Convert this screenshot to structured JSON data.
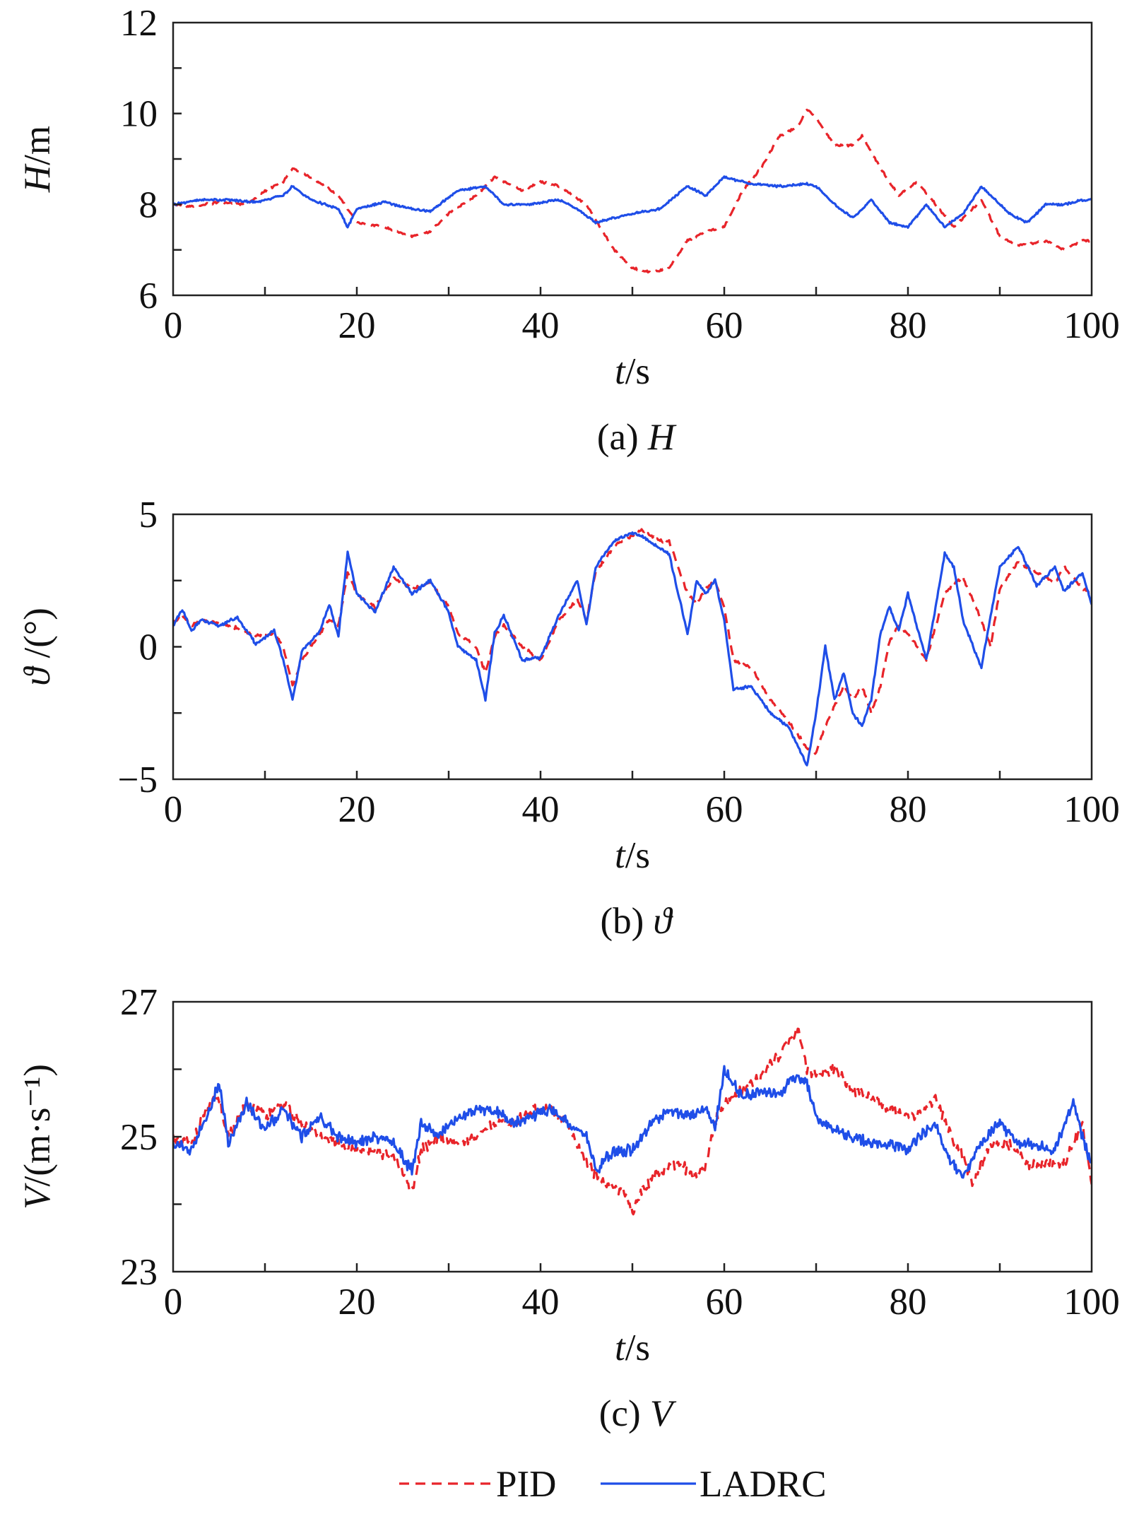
{
  "chart_data": [
    {
      "type": "line",
      "id": "H",
      "title": "",
      "xlabel": {
        "italic": "t",
        "rest": "/s"
      },
      "ylabel": {
        "italic": "H",
        "rest": "/m"
      },
      "caption": {
        "prefix": "(a) ",
        "italic": "H"
      },
      "xlim": [
        0,
        100
      ],
      "ylim": [
        6,
        12
      ],
      "xticks": [
        0,
        20,
        40,
        60,
        80,
        100
      ],
      "yticks": [
        6,
        8,
        10,
        12
      ],
      "x_minor_step": 10,
      "y_minor_step": 1,
      "noise": 0.04,
      "series": [
        {
          "name": "PID",
          "x": [
            0,
            2,
            5,
            8,
            10,
            12,
            13,
            15,
            18,
            20,
            23,
            26,
            28,
            30,
            33,
            35,
            38,
            40,
            42,
            45,
            48,
            50,
            52,
            54,
            56,
            58,
            60,
            62,
            64,
            66,
            68,
            69,
            70,
            72,
            74,
            75,
            77,
            79,
            81,
            83,
            85,
            87,
            88,
            90,
            92,
            95,
            97,
            99,
            100
          ],
          "y": [
            8.0,
            7.95,
            8.05,
            8.0,
            8.3,
            8.5,
            8.8,
            8.6,
            8.2,
            7.6,
            7.5,
            7.3,
            7.4,
            7.8,
            8.2,
            8.6,
            8.3,
            8.5,
            8.4,
            8.0,
            7.0,
            6.6,
            6.5,
            6.6,
            7.2,
            7.4,
            7.5,
            8.3,
            8.8,
            9.5,
            9.7,
            10.1,
            9.9,
            9.3,
            9.3,
            9.5,
            8.8,
            8.2,
            8.5,
            8.0,
            7.5,
            7.9,
            8.1,
            7.3,
            7.1,
            7.2,
            7.0,
            7.2,
            7.2
          ]
        },
        {
          "name": "LADRC",
          "x": [
            0,
            3,
            6,
            9,
            12,
            13,
            15,
            18,
            19,
            20,
            23,
            26,
            28,
            31,
            34,
            36,
            39,
            42,
            44,
            46,
            48,
            50,
            53,
            56,
            58,
            60,
            63,
            66,
            69,
            70,
            72,
            74,
            76,
            78,
            80,
            82,
            84,
            86,
            88,
            90,
            91,
            93,
            95,
            97,
            99,
            100
          ],
          "y": [
            8.0,
            8.1,
            8.1,
            8.05,
            8.2,
            8.4,
            8.1,
            7.9,
            7.5,
            7.9,
            8.05,
            7.9,
            7.85,
            8.3,
            8.4,
            8.0,
            8.0,
            8.1,
            7.9,
            7.6,
            7.7,
            7.8,
            7.9,
            8.4,
            8.2,
            8.6,
            8.45,
            8.4,
            8.45,
            8.4,
            8.0,
            7.7,
            8.1,
            7.6,
            7.5,
            8.0,
            7.5,
            7.8,
            8.4,
            8.0,
            7.8,
            7.6,
            8.0,
            8.0,
            8.1,
            8.1
          ]
        }
      ]
    },
    {
      "type": "line",
      "id": "theta",
      "title": "",
      "xlabel": {
        "italic": "t",
        "rest": "/s"
      },
      "ylabel": {
        "italic": "ϑ",
        "rest": " /(°)"
      },
      "caption": {
        "prefix": "(b) ",
        "italic": "ϑ"
      },
      "xlim": [
        0,
        100
      ],
      "ylim": [
        -5,
        5
      ],
      "xticks": [
        0,
        20,
        40,
        60,
        80,
        100
      ],
      "yticks": [
        -5,
        0,
        5
      ],
      "y_tick_labels": [
        "−5",
        "0",
        "5"
      ],
      "x_minor_step": 10,
      "y_minor_step": 2.5,
      "noise": 0.1,
      "series": [
        {
          "name": "PID",
          "x": [
            0,
            1,
            2,
            3,
            5,
            7,
            9,
            11,
            12,
            13,
            14,
            16,
            17,
            18,
            19,
            20,
            22,
            24,
            26,
            28,
            30,
            31,
            33,
            34,
            35,
            36,
            38,
            40,
            42,
            44,
            45,
            46,
            48,
            50,
            51,
            53,
            54,
            56,
            57,
            58,
            59,
            60,
            61,
            63,
            65,
            67,
            69,
            70,
            71,
            73,
            74,
            75,
            76,
            77,
            78,
            79,
            80,
            82,
            84,
            85,
            86,
            88,
            89,
            90,
            92,
            94,
            96,
            97,
            99,
            100
          ],
          "y": [
            0.9,
            1.2,
            0.8,
            1.0,
            0.9,
            0.7,
            0.4,
            0.5,
            0.0,
            -1.5,
            -0.5,
            0.5,
            1.0,
            0.8,
            2.8,
            2.0,
            1.5,
            2.6,
            2.2,
            2.4,
            1.5,
            0.5,
            0.0,
            -1.0,
            0.4,
            0.8,
            0.0,
            -0.5,
            1.0,
            1.8,
            1.0,
            2.8,
            3.8,
            4.2,
            4.4,
            4.0,
            4.0,
            2.0,
            1.6,
            2.2,
            2.5,
            1.5,
            -0.5,
            -0.8,
            -2.0,
            -2.8,
            -3.8,
            -4.0,
            -3.0,
            -1.5,
            -2.0,
            -1.5,
            -2.5,
            -1.5,
            0.2,
            0.8,
            0.5,
            -0.5,
            2.0,
            2.4,
            2.6,
            1.0,
            0.0,
            2.2,
            3.2,
            2.8,
            2.4,
            3.0,
            2.2,
            2.0
          ]
        },
        {
          "name": "LADRC",
          "x": [
            0,
            1,
            2,
            3,
            5,
            7,
            9,
            11,
            12,
            13,
            14,
            16,
            17,
            18,
            19,
            20,
            22,
            24,
            26,
            28,
            30,
            31,
            33,
            34,
            35,
            36,
            38,
            40,
            42,
            44,
            45,
            46,
            48,
            50,
            51,
            53,
            54,
            56,
            57,
            58,
            59,
            60,
            61,
            63,
            65,
            67,
            69,
            70,
            71,
            72,
            73,
            74,
            75,
            76,
            77,
            78,
            79,
            80,
            82,
            84,
            85,
            86,
            88,
            89,
            90,
            92,
            94,
            96,
            97,
            99,
            100
          ],
          "y": [
            0.8,
            1.4,
            0.6,
            1.0,
            0.8,
            1.1,
            0.1,
            0.6,
            -0.5,
            -2.0,
            -0.2,
            0.6,
            1.6,
            0.4,
            3.6,
            2.0,
            1.3,
            3.0,
            2.0,
            2.5,
            1.3,
            0.0,
            -0.5,
            -2.0,
            0.5,
            1.2,
            -0.5,
            -0.4,
            1.2,
            2.5,
            0.8,
            3.0,
            4.0,
            4.3,
            4.2,
            3.7,
            3.5,
            0.5,
            2.5,
            2.0,
            2.5,
            1.0,
            -1.6,
            -1.5,
            -2.5,
            -3.0,
            -4.5,
            -2.5,
            0.0,
            -2.0,
            -1.0,
            -2.5,
            -3.0,
            -2.0,
            0.5,
            1.5,
            0.6,
            2.0,
            -0.5,
            3.5,
            3.0,
            1.0,
            -0.8,
            1.2,
            3.0,
            3.8,
            2.3,
            3.0,
            2.1,
            2.8,
            1.6
          ]
        }
      ]
    },
    {
      "type": "line",
      "id": "V",
      "title": "",
      "xlabel": {
        "italic": "t",
        "rest": "/s"
      },
      "ylabel": {
        "italic": "V",
        "rest": "/(m·s⁻¹)"
      },
      "caption": {
        "prefix": "(c) ",
        "italic": "V"
      },
      "xlim": [
        0,
        100
      ],
      "ylim": [
        23,
        27
      ],
      "xticks": [
        0,
        20,
        40,
        60,
        80,
        100
      ],
      "yticks": [
        23,
        25,
        27
      ],
      "x_minor_step": 10,
      "y_minor_step": 1,
      "noise": 0.14,
      "series": [
        {
          "name": "PID",
          "x": [
            0,
            2,
            4,
            5,
            6,
            8,
            10,
            12,
            14,
            16,
            18,
            20,
            22,
            24,
            26,
            27,
            29,
            31,
            33,
            35,
            37,
            39,
            41,
            43,
            45,
            47,
            49,
            50,
            51,
            53,
            55,
            57,
            58,
            59,
            60,
            62,
            64,
            66,
            67,
            68,
            69,
            70,
            72,
            74,
            76,
            78,
            80,
            82,
            83,
            84,
            86,
            87,
            89,
            91,
            93,
            95,
            97,
            98,
            99,
            100
          ],
          "y": [
            25.0,
            24.9,
            25.5,
            25.6,
            25.0,
            25.5,
            25.3,
            25.5,
            25.2,
            25.0,
            24.9,
            24.8,
            24.8,
            24.7,
            24.2,
            24.8,
            25.0,
            24.9,
            25.0,
            25.2,
            25.2,
            25.4,
            25.4,
            25.2,
            24.6,
            24.3,
            24.2,
            23.9,
            24.2,
            24.5,
            24.6,
            24.4,
            24.6,
            25.2,
            25.5,
            25.7,
            25.9,
            26.2,
            26.4,
            26.6,
            26.0,
            25.9,
            26.0,
            25.7,
            25.6,
            25.4,
            25.3,
            25.4,
            25.6,
            25.2,
            24.7,
            24.3,
            24.9,
            24.9,
            24.6,
            24.6,
            24.6,
            24.9,
            25.2,
            24.3
          ]
        },
        {
          "name": "LADRC",
          "x": [
            0,
            2,
            4,
            5,
            6,
            8,
            10,
            12,
            14,
            16,
            18,
            20,
            22,
            24,
            26,
            27,
            29,
            31,
            33,
            35,
            37,
            39,
            41,
            43,
            45,
            46,
            48,
            50,
            52,
            54,
            56,
            58,
            59,
            60,
            62,
            64,
            66,
            67,
            68,
            69,
            70,
            72,
            74,
            76,
            78,
            80,
            82,
            83,
            84,
            86,
            88,
            90,
            92,
            94,
            96,
            98,
            99,
            100
          ],
          "y": [
            24.9,
            24.8,
            25.4,
            25.8,
            24.9,
            25.5,
            25.1,
            25.4,
            25.0,
            25.3,
            25.0,
            24.9,
            25.0,
            24.9,
            24.5,
            25.2,
            25.0,
            25.3,
            25.4,
            25.4,
            25.2,
            25.3,
            25.4,
            25.2,
            25.0,
            24.5,
            24.8,
            24.8,
            25.2,
            25.4,
            25.3,
            25.4,
            25.1,
            26.0,
            25.6,
            25.7,
            25.6,
            25.8,
            25.9,
            25.8,
            25.3,
            25.1,
            25.0,
            24.9,
            24.9,
            24.8,
            25.1,
            25.2,
            24.8,
            24.4,
            24.9,
            25.2,
            24.9,
            24.9,
            24.8,
            25.5,
            25.0,
            24.6
          ]
        }
      ]
    }
  ],
  "legend": {
    "items": [
      {
        "name": "PID",
        "color": "#e8242a",
        "style": "dashed"
      },
      {
        "name": "LADRC",
        "color": "#1f4ee8",
        "style": "solid"
      }
    ]
  }
}
